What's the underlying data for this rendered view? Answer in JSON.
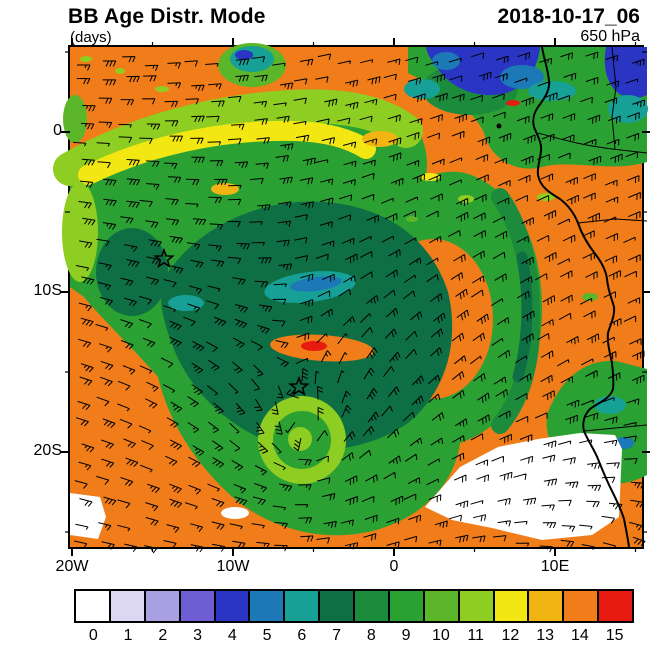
{
  "header": {
    "title": "BB Age Distr. Mode",
    "units_label": "(days)",
    "datetime": "2018-10-17_06",
    "level": "650 hPa"
  },
  "axes": {
    "x_tick_labels": [
      "20W",
      "10W",
      "0",
      "10E"
    ],
    "y_tick_labels": [
      "0",
      "10S",
      "20S"
    ]
  },
  "chart_data": {
    "type": "heatmap",
    "title": "BB Age Distr. Mode",
    "variable": "Biomass burning age distribution mode",
    "units": "days",
    "level": "650 hPa",
    "valid_time": "2018-10-17_06",
    "x_axis": {
      "label": "longitude",
      "tick_labels": [
        "20W",
        "10W",
        "0",
        "10E"
      ],
      "range_deg": [
        -20,
        15.5
      ]
    },
    "y_axis": {
      "label": "latitude",
      "tick_labels": [
        "0",
        "10S",
        "20S"
      ],
      "range_deg": [
        5.3,
        -25.9
      ]
    },
    "colorbar": {
      "values": [
        "0",
        "1",
        "2",
        "3",
        "4",
        "5",
        "6",
        "7",
        "8",
        "9",
        "10",
        "11",
        "12",
        "13",
        "14",
        "15"
      ],
      "colors": [
        "#ffffff",
        "#dcd7f2",
        "#a99fe3",
        "#6f5dd3",
        "#2a35c4",
        "#1d78b8",
        "#17a096",
        "#0e6f45",
        "#1c8c3c",
        "#2ca133",
        "#5bb62a",
        "#8ecd22",
        "#f2e713",
        "#f1b513",
        "#f07c1a",
        "#e71b10"
      ]
    },
    "overlays": [
      "wind barbs",
      "coastline",
      "country borders",
      "star markers"
    ],
    "field_summary": "Mostly ~14-day-old air (orange) with a 7-11 day (green) biomass-burning plume spiraling over the SE Atlantic, a 12-day yellow band on its northern edge, 3-6 day (blue/teal) air near the equatorial African coast, and 0-1 day (white) air off the Namibian coast."
  }
}
